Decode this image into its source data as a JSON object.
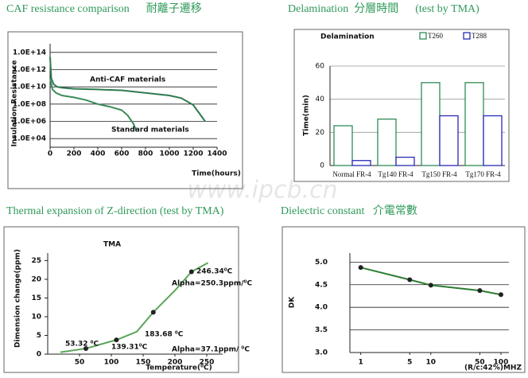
{
  "watermark": "www.ipcb.cn",
  "chart_data": [
    {
      "type": "line",
      "title": "CAF resistance comparison      耐離子遷移",
      "y_label": "Insulation Resistance",
      "x_label": "Time(hours)",
      "ylog": true,
      "ylim": [
        1000,
        1000000000000000.0
      ],
      "yticks": [
        {
          "value": 10000,
          "label": "1.0E+04"
        },
        {
          "value": 1000000,
          "label": "1.0E+06"
        },
        {
          "value": 100000000,
          "label": "1.0E+08"
        },
        {
          "value": 10000000000,
          "label": "1.0E+10"
        },
        {
          "value": 1000000000000,
          "label": "1.0E+12"
        },
        {
          "value": 100000000000000,
          "label": "1.0E+14"
        }
      ],
      "xlim": [
        0,
        1400
      ],
      "xticks": [
        0,
        200,
        400,
        600,
        800,
        1000,
        1200,
        1400
      ],
      "grid": true,
      "series": [
        {
          "name": "Anti-CAF materials",
          "color": "#2f7a50",
          "x": [
            0,
            10,
            30,
            60,
            100,
            200,
            400,
            600,
            800,
            1000,
            1100,
            1200,
            1300
          ],
          "values": [
            30000000000000,
            100000000000,
            20000000000,
            10000000000,
            8000000000,
            6000000000,
            5000000000,
            4000000000,
            2000000000,
            1000000000,
            500000000,
            80000000,
            1000000
          ]
        },
        {
          "name": "Standard materials",
          "color": "#3c8c5a",
          "x": [
            0,
            20,
            50,
            100,
            200,
            300,
            400,
            500,
            600,
            650,
            700,
            720
          ],
          "values": [
            100000000000,
            5000000000,
            2000000000,
            1000000000,
            600000000,
            300000000,
            100000000,
            50000000,
            20000000,
            5000000,
            500000,
            100000
          ]
        }
      ]
    },
    {
      "type": "bar",
      "title": "Delamination  分層時間      (test by TMA)",
      "chart_title": "Delamination",
      "y_label": "Time(min)",
      "categories": [
        "Normal FR-4",
        "Tg140 FR-4",
        "Tg150 FR-4",
        "Tg170 FR-4"
      ],
      "ylim": [
        0,
        60
      ],
      "yticks": [
        0,
        20,
        40,
        60
      ],
      "grid": true,
      "legend": "top-right",
      "series": [
        {
          "name": "T260",
          "color": "#2e8b57",
          "values": [
            24,
            28,
            50,
            50
          ]
        },
        {
          "name": "T288",
          "color": "#2a2ab8",
          "values": [
            3,
            5,
            30,
            30
          ]
        }
      ]
    },
    {
      "type": "line",
      "title": "Thermal expansion of Z-direction (test by TMA)",
      "chart_title": "TMA",
      "y_label": "Dimension change(ppm)",
      "x_label": "Temperature(⁰C)",
      "xlim": [
        0,
        275
      ],
      "xticks": [
        50,
        100,
        150,
        200,
        250
      ],
      "ylim": [
        0,
        27
      ],
      "yticks": [
        0,
        5,
        10,
        15,
        20,
        25
      ],
      "grid": false,
      "annotations": [
        "53.32 ⁰C",
        "139.31⁰C",
        "183.68 ⁰C",
        "246.34⁰C",
        "Alpha=250.3ppm/⁰C",
        "Alpha=37.1ppm/ ⁰C"
      ],
      "series": [
        {
          "color": "#5aa55a",
          "x": [
            20,
            60,
            108,
            140,
            166,
            200,
            226,
            252
          ],
          "values": [
            0.5,
            1.5,
            3.8,
            6,
            11.2,
            17,
            22,
            24.4
          ]
        },
        {
          "color": "#222222",
          "line": false,
          "marker": true,
          "x": [
            60,
            108,
            166,
            226
          ],
          "values": [
            1.5,
            3.8,
            11.2,
            22
          ]
        }
      ]
    },
    {
      "type": "line",
      "title": "Dielectric constant   介電常數",
      "y_label": "DK",
      "x_label": "(R/c:42%)MHZ",
      "xlog": true,
      "xlim": [
        0.7,
        130
      ],
      "xticks": [
        1,
        5,
        10,
        50,
        100
      ],
      "ylim": [
        3,
        5.2
      ],
      "yticks": [
        {
          "value": 3,
          "label": "3.0"
        },
        3.5,
        {
          "value": 4,
          "label": "4.0"
        },
        4.5,
        {
          "value": 5,
          "label": "5.0"
        }
      ],
      "grid": true,
      "series": [
        {
          "color": "#2e7d32",
          "marker": true,
          "x": [
            1,
            5,
            10,
            50,
            100
          ],
          "values": [
            4.88,
            4.61,
            4.49,
            4.37,
            4.28
          ]
        }
      ]
    }
  ]
}
